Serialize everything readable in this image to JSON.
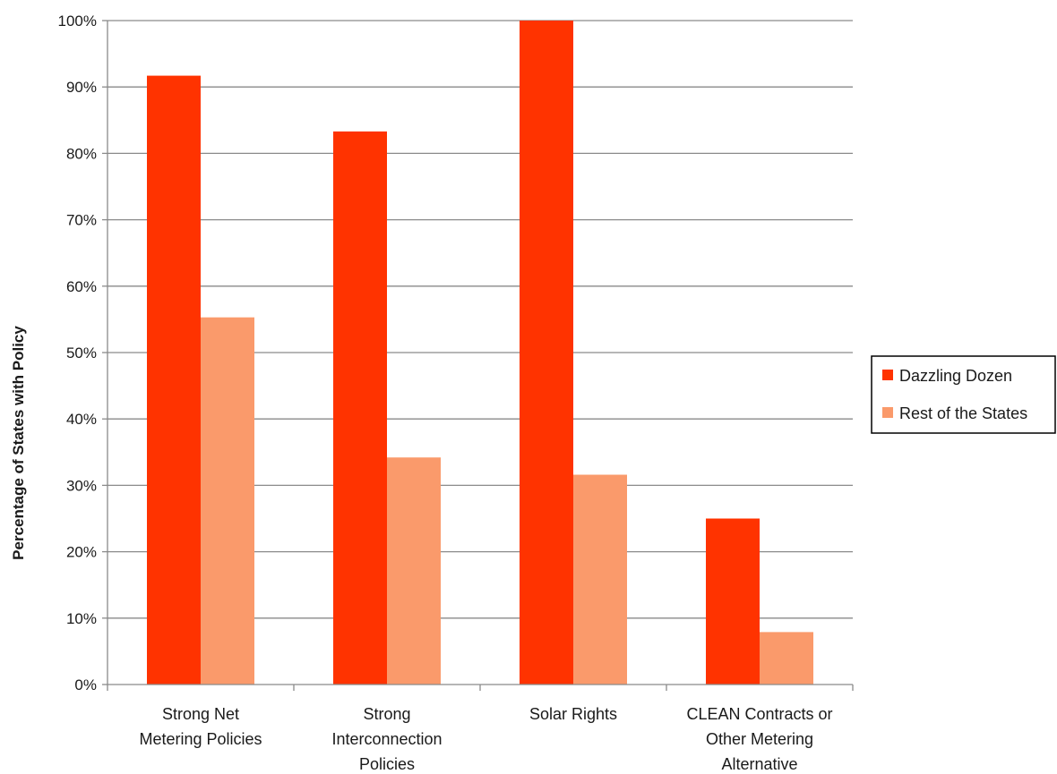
{
  "chart_data": {
    "type": "bar",
    "title": "",
    "xlabel": "",
    "ylabel": "Percentage of States with Policy",
    "ylim": [
      0,
      100
    ],
    "yticks": [
      "0%",
      "10%",
      "20%",
      "30%",
      "40%",
      "50%",
      "60%",
      "70%",
      "80%",
      "90%",
      "100%"
    ],
    "grid": true,
    "legend_position": "right",
    "categories": [
      [
        "Strong Net",
        "Metering Policies"
      ],
      [
        "Strong",
        "Interconnection",
        "Policies"
      ],
      [
        "Solar Rights"
      ],
      [
        "CLEAN Contracts or",
        "Other Metering",
        "Alternative"
      ]
    ],
    "series": [
      {
        "name": "Dazzling Dozen",
        "color": "#ff3300",
        "values": [
          91.7,
          83.3,
          100,
          25
        ]
      },
      {
        "name": "Rest of the States",
        "color": "#fa9a6b",
        "values": [
          55.3,
          34.2,
          31.6,
          7.9
        ]
      }
    ]
  }
}
